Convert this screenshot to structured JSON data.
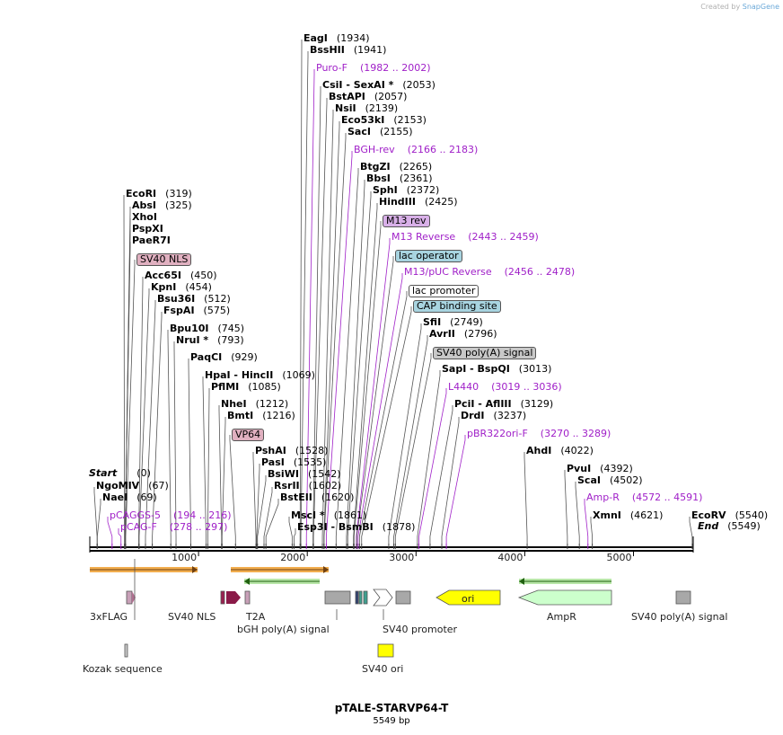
{
  "credit": {
    "text": "Created by",
    "brand": "SnapGene"
  },
  "map": {
    "title": "pTALE-STARVP64-T",
    "size_label": "5549 bp",
    "length": 5549
  },
  "start_label": {
    "name": "Start",
    "pos": "(0)"
  },
  "end_label": {
    "name": "End",
    "pos": "(5549)"
  },
  "ticks": [
    1000,
    2000,
    3000,
    4000,
    5000
  ],
  "sites": [
    {
      "name": "EagI",
      "pos": "(1934)",
      "bp": 1934
    },
    {
      "name": "BssHII",
      "pos": "(1941)",
      "bp": 1941
    },
    {
      "name": "Puro-F",
      "pos": "(1982 .. 2002)",
      "bp": 1992,
      "primer": true
    },
    {
      "name": "CsiI   - SexAI *",
      "pos": "(2053)",
      "bp": 2053
    },
    {
      "name": "BstAPI",
      "pos": "(2057)",
      "bp": 2057
    },
    {
      "name": "NsiI",
      "pos": "(2139)",
      "bp": 2139
    },
    {
      "name": "Eco53kI",
      "pos": "(2153)",
      "bp": 2153
    },
    {
      "name": "SacI",
      "pos": "(2155)",
      "bp": 2155
    },
    {
      "name": "BGH-rev",
      "pos": "(2166 .. 2183)",
      "bp": 2175,
      "primer": true
    },
    {
      "name": "BtgZI",
      "pos": "(2265)",
      "bp": 2265
    },
    {
      "name": "BbsI",
      "pos": "(2361)",
      "bp": 2361
    },
    {
      "name": "SphI",
      "pos": "(2372)",
      "bp": 2372
    },
    {
      "name": "HindIII",
      "pos": "(2425)",
      "bp": 2425
    },
    {
      "name": "M13 rev",
      "pos": "",
      "bp": 2430,
      "box": "#d8b0e8"
    },
    {
      "name": "M13 Reverse",
      "pos": "(2443 .. 2459)",
      "bp": 2451,
      "primer": true
    },
    {
      "name": "lac operator",
      "pos": "",
      "bp": 2455,
      "box": "#a8d4e0"
    },
    {
      "name": "M13/pUC Reverse",
      "pos": "(2456 .. 2478)",
      "bp": 2467,
      "primer": true
    },
    {
      "name": "lac promoter",
      "pos": "",
      "bp": 2480,
      "box": "#ffffff"
    },
    {
      "name": "CAP binding site",
      "pos": "",
      "bp": 2500,
      "box": "#a8d4e0"
    },
    {
      "name": "SfiI",
      "pos": "(2749)",
      "bp": 2749
    },
    {
      "name": "AvrII",
      "pos": "(2796)",
      "bp": 2796
    },
    {
      "name": "SV40 poly(A) signal",
      "pos": "",
      "bp": 2810,
      "box": "#c8c8c8"
    },
    {
      "name": "SapI   - BspQI",
      "pos": "(3013)",
      "bp": 3013
    },
    {
      "name": "L4440",
      "pos": "(3019 .. 3036)",
      "bp": 3027,
      "primer": true
    },
    {
      "name": "PciI   - AflIII",
      "pos": "(3129)",
      "bp": 3129
    },
    {
      "name": "DrdI",
      "pos": "(3237)",
      "bp": 3237
    },
    {
      "name": "pBR322ori-F",
      "pos": "(3270 .. 3289)",
      "bp": 3279,
      "primer": true
    },
    {
      "name": "AhdI",
      "pos": "(4022)",
      "bp": 4022
    },
    {
      "name": "PvuI",
      "pos": "(4392)",
      "bp": 4392
    },
    {
      "name": "ScaI",
      "pos": "(4502)",
      "bp": 4502
    },
    {
      "name": "Amp-R",
      "pos": "(4572 .. 4591)",
      "bp": 4581,
      "primer": true
    },
    {
      "name": "XmnI",
      "pos": "(4621)",
      "bp": 4621
    },
    {
      "name": "EcoRV",
      "pos": "(5540)",
      "bp": 5540
    },
    {
      "name": "EcoRI",
      "pos": "(319)",
      "bp": 319
    },
    {
      "name": "AbsI",
      "pos": "(325)",
      "bp": 325
    },
    {
      "name": "XhoI",
      "pos": "",
      "bp": 325
    },
    {
      "name": "PspXI",
      "pos": "",
      "bp": 325
    },
    {
      "name": "PaeR7I",
      "pos": "",
      "bp": 325
    },
    {
      "name": "SV40 NLS",
      "pos": "",
      "bp": 330,
      "box": "#e0b0c0"
    },
    {
      "name": "Acc65I",
      "pos": "(450)",
      "bp": 450
    },
    {
      "name": "KpnI",
      "pos": "(454)",
      "bp": 454
    },
    {
      "name": "Bsu36I",
      "pos": "(512)",
      "bp": 512
    },
    {
      "name": "FspAI",
      "pos": "(575)",
      "bp": 575
    },
    {
      "name": "Bpu10I",
      "pos": "(745)",
      "bp": 745
    },
    {
      "name": "NruI *",
      "pos": "(793)",
      "bp": 793
    },
    {
      "name": "PaqCI",
      "pos": "(929)",
      "bp": 929
    },
    {
      "name": "HpaI   - HincII",
      "pos": "(1069)",
      "bp": 1069
    },
    {
      "name": "PflMI",
      "pos": "(1085)",
      "bp": 1085
    },
    {
      "name": "NheI",
      "pos": "(1212)",
      "bp": 1212
    },
    {
      "name": "BmtI",
      "pos": "(1216)",
      "bp": 1216
    },
    {
      "name": "VP64",
      "pos": "",
      "bp": 1340,
      "box": "#e0b0c0"
    },
    {
      "name": "PshAI",
      "pos": "(1528)",
      "bp": 1528
    },
    {
      "name": "PasI",
      "pos": "(1535)",
      "bp": 1535
    },
    {
      "name": "BsiWI",
      "pos": "(1542)",
      "bp": 1542
    },
    {
      "name": "RsrII",
      "pos": "(1602)",
      "bp": 1602
    },
    {
      "name": "BstEII",
      "pos": "(1620)",
      "bp": 1620
    },
    {
      "name": "MscI *",
      "pos": "(1861)",
      "bp": 1861
    },
    {
      "name": "Esp3I   - BsmBI",
      "pos": "(1878)",
      "bp": 1878
    },
    {
      "name": "NgoMIV",
      "pos": "(67)",
      "bp": 67
    },
    {
      "name": "NaeI",
      "pos": "(69)",
      "bp": 69
    },
    {
      "name": "pCAGGS-5",
      "pos": "(194 .. 216)",
      "bp": 205,
      "primer": true
    },
    {
      "name": "pCAG-F",
      "pos": "(278 .. 297)",
      "bp": 287,
      "primer": true
    }
  ],
  "features": [
    {
      "name": "3xFLAG",
      "color": "#c8a0b8"
    },
    {
      "name": "SV40 NLS",
      "color": "#c8a0b8"
    },
    {
      "name": "T2A",
      "color": "#c8a0b8"
    },
    {
      "name": "bGH poly(A) signal",
      "color": "#a8a8a8"
    },
    {
      "name": "SV40 promoter",
      "color": "#ffffff"
    },
    {
      "name": "ori",
      "color": "#ffff00"
    },
    {
      "name": "AmpR",
      "color": "#ccffcc"
    },
    {
      "name": "SV40 poly(A) signal",
      "color": "#a8a8a8"
    },
    {
      "name": "Kozak sequence",
      "color": "#c8c8c8"
    },
    {
      "name": "SV40 ori",
      "color": "#ffff00"
    }
  ],
  "colors": {
    "primer": "#a020c8",
    "orange_arrow": "#f0a030",
    "green_arrow": "#50b030"
  }
}
